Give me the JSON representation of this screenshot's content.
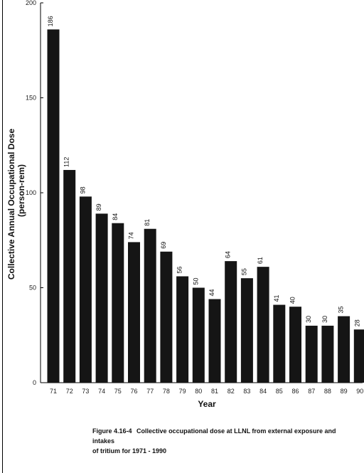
{
  "chart_data": {
    "type": "bar",
    "categories": [
      "71",
      "72",
      "73",
      "74",
      "75",
      "76",
      "77",
      "78",
      "79",
      "80",
      "81",
      "82",
      "83",
      "84",
      "85",
      "86",
      "87",
      "88",
      "89",
      "90"
    ],
    "values": [
      186,
      112,
      98,
      89,
      84,
      74,
      81,
      69,
      56,
      50,
      44,
      64,
      55,
      61,
      41,
      40,
      30,
      30,
      35,
      28
    ],
    "xlabel": "Year",
    "ylabel_line1": "Collective Annual Occupational Dose",
    "ylabel_line2": "(person-rem)",
    "ylim": [
      0,
      200
    ],
    "yticks": [
      "0",
      "50",
      "100",
      "150",
      "200"
    ],
    "grid": false,
    "bar_color": "#151515"
  },
  "caption": {
    "number": "Figure 4.16-4",
    "line1": "Collective occupational dose at LLNL from external exposure and intakes",
    "line2": "of tritium for 1971 - 1990"
  }
}
